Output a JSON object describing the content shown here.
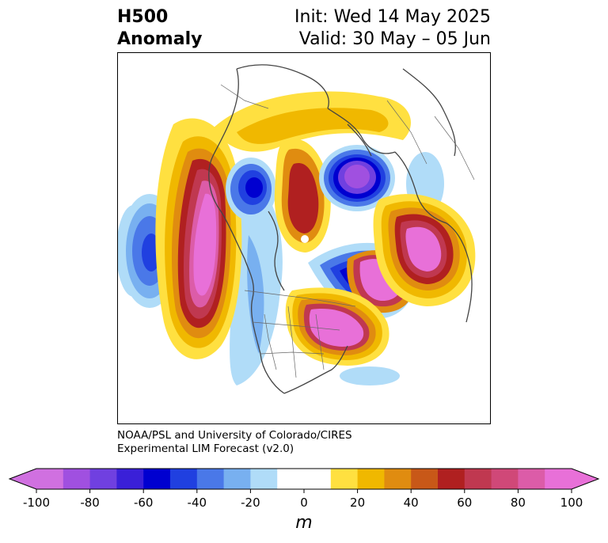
{
  "title": {
    "left_line1": "H500",
    "left_line2": "Anomaly",
    "right_line1": "Init: Wed 14 May 2025",
    "right_line2": "Valid: 30 May – 05 Jun"
  },
  "credit": {
    "line1": "NOAA/PSL and University of Colorado/CIRES",
    "line2": "Experimental LIM Forecast (v2.0)"
  },
  "colorbar": {
    "unit": "m",
    "ticks": [
      "-100",
      "-80",
      "-60",
      "-40",
      "-20",
      "0",
      "20",
      "40",
      "60",
      "80",
      "100"
    ],
    "colors": [
      "#d070e0",
      "#a050e0",
      "#7040e0",
      "#3a20d8",
      "#0000d0",
      "#2040e0",
      "#4a78e8",
      "#78b0f0",
      "#b0dcf8",
      "#ffffff",
      "#ffffff",
      "#ffe040",
      "#f0b800",
      "#e08c10",
      "#c85818",
      "#b02020",
      "#c03850",
      "#d04878",
      "#dc5ca8",
      "#e870d8"
    ]
  },
  "map": {
    "pole_marker": "white-dot",
    "anomalies": [
      {
        "region": "eastern-pacific",
        "sign": "positive",
        "peak_m": 100
      },
      {
        "region": "central-pacific",
        "sign": "negative",
        "peak_m": -40
      },
      {
        "region": "hudson-bay",
        "sign": "positive",
        "peak_m": 100
      },
      {
        "region": "eastern-siberia",
        "sign": "negative",
        "peak_m": -60
      },
      {
        "region": "greenland-arctic",
        "sign": "positive",
        "peak_m": 60
      },
      {
        "region": "barents-kara",
        "sign": "negative",
        "peak_m": -80
      },
      {
        "region": "scandinavia-nw-russia",
        "sign": "positive",
        "peak_m": 100
      },
      {
        "region": "western-us",
        "sign": "negative",
        "peak_m": -20
      }
    ]
  }
}
